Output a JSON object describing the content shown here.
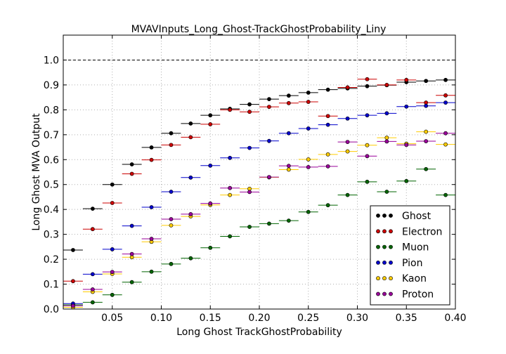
{
  "chart_data": {
    "type": "scatter",
    "title": "MVAVInputs_Long_Ghost-TrackGhostProbability_Liny",
    "xlabel": "Long Ghost TrackGhostProbability",
    "ylabel": "Long Ghost MVA Output",
    "xlim": [
      0.0,
      0.4
    ],
    "ylim": [
      0.0,
      1.1
    ],
    "xticks": [
      "0.05",
      "0.10",
      "0.15",
      "0.20",
      "0.25",
      "0.30",
      "0.35",
      "0.40"
    ],
    "xtick_values": [
      0.05,
      0.1,
      0.15,
      0.2,
      0.25,
      0.3,
      0.35,
      0.4
    ],
    "yticks": [
      "0.0",
      "0.1",
      "0.2",
      "0.3",
      "0.4",
      "0.5",
      "0.6",
      "0.7",
      "0.8",
      "0.9",
      "1.0"
    ],
    "ytick_values": [
      0.0,
      0.1,
      0.2,
      0.3,
      0.4,
      0.5,
      0.6,
      0.7,
      0.8,
      0.9,
      1.0
    ],
    "grid": true,
    "reference_line_y": 1.0,
    "legend_position": "lower-right",
    "x": [
      0.01,
      0.03,
      0.05,
      0.07,
      0.09,
      0.11,
      0.13,
      0.15,
      0.17,
      0.19,
      0.21,
      0.23,
      0.25,
      0.27,
      0.29,
      0.31,
      0.33,
      0.35,
      0.37,
      0.39
    ],
    "x_halfwidth": 0.01,
    "series": [
      {
        "name": "Ghost",
        "color": "#000000",
        "values": [
          0.237,
          0.403,
          0.5,
          0.581,
          0.649,
          0.706,
          0.745,
          0.778,
          0.804,
          0.822,
          0.843,
          0.857,
          0.869,
          0.881,
          0.886,
          0.895,
          0.899,
          0.911,
          0.916,
          0.92
        ]
      },
      {
        "name": "Electron",
        "color": "#cc0000",
        "values": [
          0.112,
          0.321,
          0.426,
          0.543,
          0.599,
          0.659,
          0.69,
          0.742,
          0.8,
          0.792,
          0.812,
          0.827,
          0.832,
          0.775,
          0.89,
          0.923,
          0.9,
          0.92,
          0.829,
          0.858
        ]
      },
      {
        "name": "Muon",
        "color": "#006400",
        "values": [
          0.017,
          0.027,
          0.057,
          0.108,
          0.15,
          0.181,
          0.204,
          0.246,
          0.292,
          0.33,
          0.343,
          0.355,
          0.39,
          0.417,
          0.458,
          0.511,
          0.471,
          0.514,
          0.562,
          0.458
        ]
      },
      {
        "name": "Pion",
        "color": "#0000cc",
        "values": [
          0.022,
          0.14,
          0.24,
          0.334,
          0.409,
          0.471,
          0.528,
          0.576,
          0.607,
          0.647,
          0.675,
          0.706,
          0.725,
          0.74,
          0.765,
          0.778,
          0.786,
          0.813,
          0.816,
          0.829
        ]
      },
      {
        "name": "Kaon",
        "color": "#ffcc00",
        "values": [
          0.007,
          0.069,
          0.141,
          0.208,
          0.27,
          0.336,
          0.372,
          0.418,
          0.458,
          0.483,
          0.529,
          0.56,
          0.601,
          0.621,
          0.633,
          0.658,
          0.688,
          0.664,
          0.712,
          0.661
        ]
      },
      {
        "name": "Proton",
        "color": "#990099",
        "values": [
          0.013,
          0.079,
          0.149,
          0.221,
          0.282,
          0.361,
          0.381,
          0.424,
          0.486,
          0.47,
          0.53,
          0.575,
          0.57,
          0.573,
          0.671,
          0.614,
          0.673,
          0.659,
          0.674,
          0.706
        ]
      }
    ]
  }
}
